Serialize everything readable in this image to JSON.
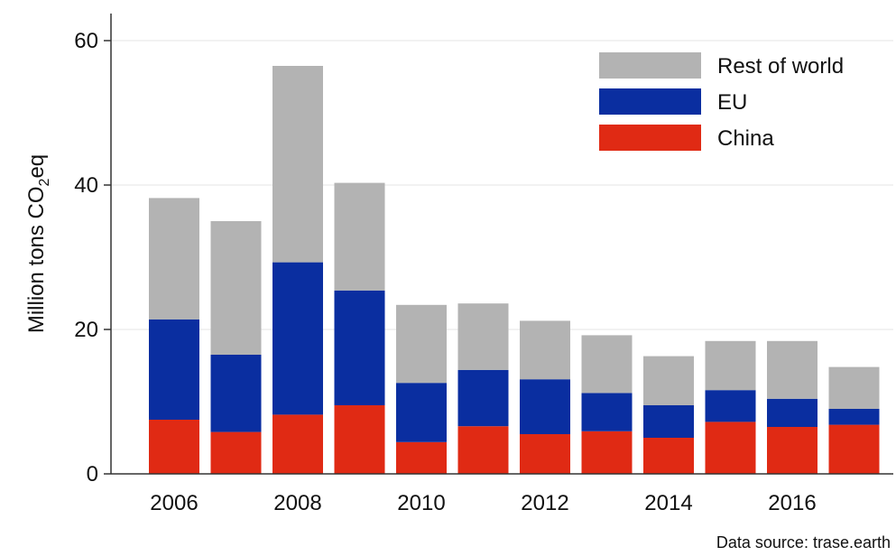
{
  "chart_data": {
    "type": "bar",
    "stacked": true,
    "categories": [
      "2006",
      "2007",
      "2008",
      "2009",
      "2010",
      "2011",
      "2012",
      "2013",
      "2014",
      "2015",
      "2016",
      "2017"
    ],
    "x_tick_labels": [
      "2006",
      "2008",
      "2010",
      "2012",
      "2014",
      "2016"
    ],
    "series": [
      {
        "name": "China",
        "color": "#e02a14",
        "values": [
          7.5,
          5.8,
          8.2,
          9.5,
          4.4,
          6.6,
          5.5,
          5.9,
          5.0,
          7.2,
          6.5,
          6.8
        ]
      },
      {
        "name": "EU",
        "color": "#0a2ea0",
        "values": [
          13.9,
          10.7,
          21.1,
          15.9,
          8.2,
          7.8,
          7.6,
          5.3,
          4.5,
          4.4,
          3.9,
          2.2
        ]
      },
      {
        "name": "Rest of world",
        "color": "#b3b3b3",
        "values": [
          16.8,
          18.5,
          27.2,
          14.9,
          10.8,
          9.2,
          8.1,
          8.0,
          6.8,
          6.8,
          8.0,
          5.8
        ]
      }
    ],
    "legend_order": [
      "Rest of world",
      "EU",
      "China"
    ],
    "legend_position": "top-right",
    "ylabel_main": "Million tons CO",
    "ylabel_sub": "2",
    "ylabel_tail": "eq",
    "yticks": [
      "0",
      "20",
      "40",
      "60"
    ],
    "ylim": [
      0,
      64
    ],
    "grid": true
  },
  "source_text": "Data source: trase.earth"
}
